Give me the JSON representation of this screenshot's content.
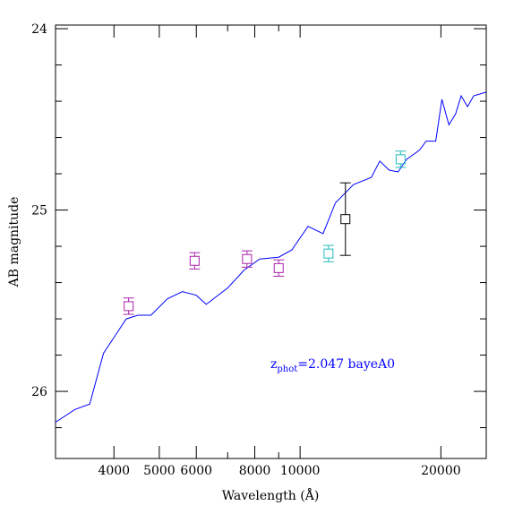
{
  "chart_data": {
    "type": "line",
    "xlabel": "Wavelength (Å)",
    "ylabel": "AB magnitude",
    "x_scale": "log",
    "xlim": [
      3000,
      25000
    ],
    "ylim": [
      26.37,
      23.98
    ],
    "y_inverted": true,
    "x_ticks": [
      4000,
      5000,
      6000,
      8000,
      10000,
      20000
    ],
    "x_tick_labels": [
      "4000",
      "5000",
      "6000",
      "8000",
      "10000",
      "20000"
    ],
    "y_ticks": [
      24,
      25,
      26
    ],
    "y_tick_labels": [
      "24",
      "25",
      "26"
    ],
    "grid": false,
    "annotation": {
      "prefix": "z",
      "subscript": "phot",
      "text": "=2.047 bayeA0",
      "color": "#0000ff"
    },
    "series": [
      {
        "kind": "sed-line",
        "color": "#0000ff",
        "x": [
          3000,
          3300,
          3550,
          3800,
          4250,
          4500,
          4800,
          5200,
          5600,
          6000,
          6300,
          7000,
          7600,
          8200,
          9000,
          9600,
          10400,
          11200,
          11900,
          13000,
          14200,
          14800,
          15500,
          16200,
          16900,
          18000,
          18600,
          19500,
          20100,
          20800,
          21500,
          22100,
          22800,
          23500,
          25000
        ],
        "y": [
          26.17,
          26.1,
          26.07,
          25.79,
          25.6,
          25.58,
          25.58,
          25.49,
          25.45,
          25.47,
          25.52,
          25.43,
          25.33,
          25.27,
          25.26,
          25.22,
          25.09,
          25.13,
          24.96,
          24.86,
          24.82,
          24.73,
          24.78,
          24.79,
          24.72,
          24.67,
          24.62,
          24.62,
          24.39,
          24.53,
          24.47,
          24.37,
          24.43,
          24.37,
          24.35
        ]
      },
      {
        "kind": "photometry",
        "color": "#aa22aa",
        "points": [
          {
            "x": 4300,
            "y": 25.53,
            "err": 0.045
          },
          {
            "x": 5950,
            "y": 25.28,
            "err": 0.045
          },
          {
            "x": 7700,
            "y": 25.27,
            "err": 0.045
          },
          {
            "x": 9000,
            "y": 25.32,
            "err": 0.045
          }
        ]
      },
      {
        "kind": "photometry",
        "color": "#22bbbb",
        "points": [
          {
            "x": 11500,
            "y": 25.24,
            "err": 0.045
          },
          {
            "x": 16400,
            "y": 24.72,
            "err": 0.045
          }
        ]
      },
      {
        "kind": "photometry",
        "color": "#000000",
        "points": [
          {
            "x": 12500,
            "y": 25.05,
            "err": 0.2
          }
        ]
      }
    ]
  }
}
